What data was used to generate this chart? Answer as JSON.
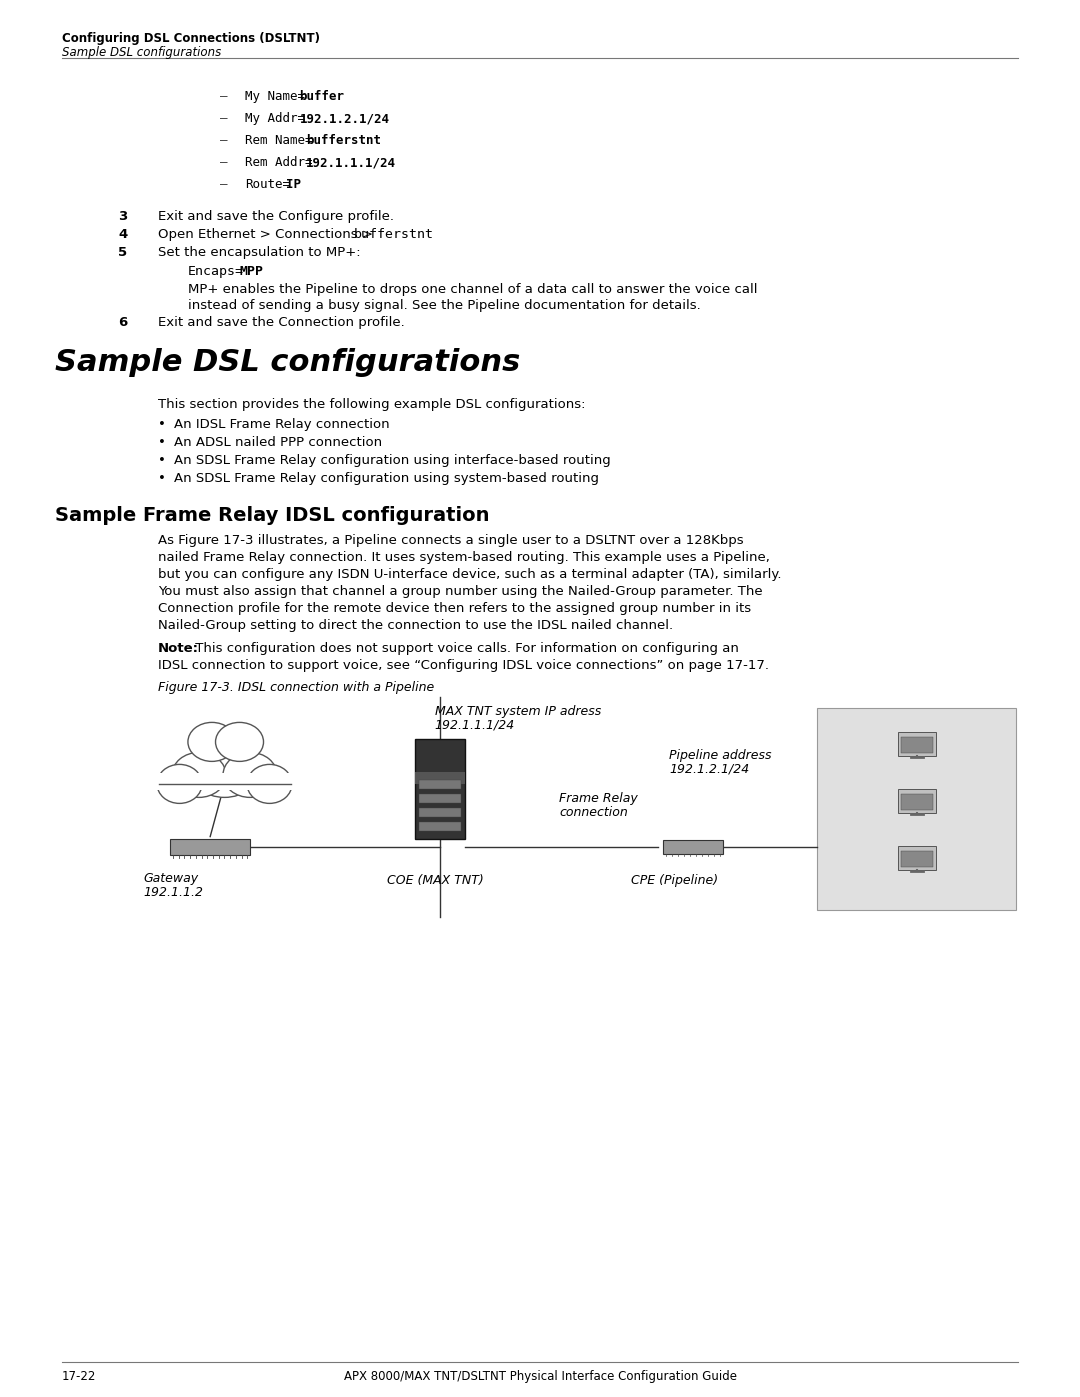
{
  "header_bold": "Configuring DSL Connections (DSLTNT)",
  "header_italic": "Sample DSL configurations",
  "bg_color": "#ffffff",
  "text_color": "#000000",
  "footer_left": "17-22",
  "footer_right": "APX 8000/MAX TNT/DSLTNT Physical Interface Configuration Guide"
}
